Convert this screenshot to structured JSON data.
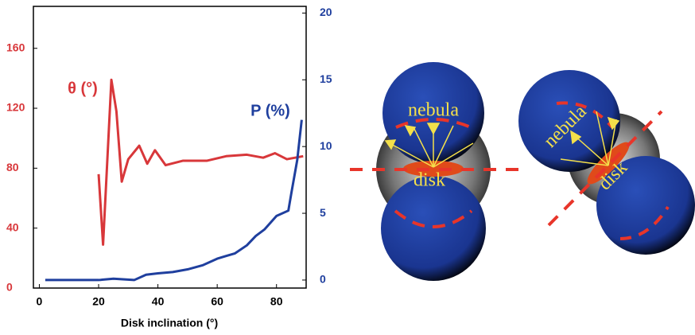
{
  "chart_data": {
    "type": "line",
    "x_label": "Disk inclination (°)",
    "xlim": [
      -2,
      90
    ],
    "xticks": [
      0,
      20,
      40,
      60,
      80
    ],
    "ylim": [
      0,
      188
    ],
    "yticks": [
      0,
      40,
      80,
      120,
      160
    ],
    "ycolor": "#d8373a",
    "y2lim": [
      -0.6,
      20.5
    ],
    "y2ticks": [
      0,
      5,
      10,
      15,
      20
    ],
    "y2color": "#1f3f9e",
    "series": [
      {
        "name": "θ (°)",
        "color": "#d8373a",
        "x": [
          20,
          21.5,
          24.3,
          26,
          27.8,
          30,
          33.7,
          36.4,
          39,
          42.6,
          48.5,
          56.6,
          63,
          70,
          75.5,
          79.5,
          83.5,
          89
        ],
        "values": [
          76,
          29,
          139,
          118,
          71,
          86,
          95,
          83,
          92,
          82,
          85,
          85,
          88,
          89,
          87,
          90,
          86,
          88
        ]
      },
      {
        "name": "P (%)",
        "color": "#1f3f9e",
        "axis": "y2",
        "x": [
          2,
          10,
          20,
          25,
          32,
          36,
          40,
          45,
          50,
          55,
          60,
          63,
          66,
          70,
          73,
          76,
          80,
          84,
          85,
          87,
          88.5
        ],
        "values": [
          0,
          0,
          0,
          0.1,
          0,
          0.4,
          0.5,
          0.6,
          0.8,
          1.1,
          1.6,
          1.8,
          2,
          2.6,
          3.3,
          3.8,
          4.8,
          5.2,
          6.5,
          9,
          12
        ]
      }
    ]
  },
  "diagram": {
    "aligned": {
      "top_label": "nebula",
      "bottom_label": "disk"
    },
    "tilted": {
      "top_label": "nebula",
      "bottom_label": "disk"
    }
  }
}
